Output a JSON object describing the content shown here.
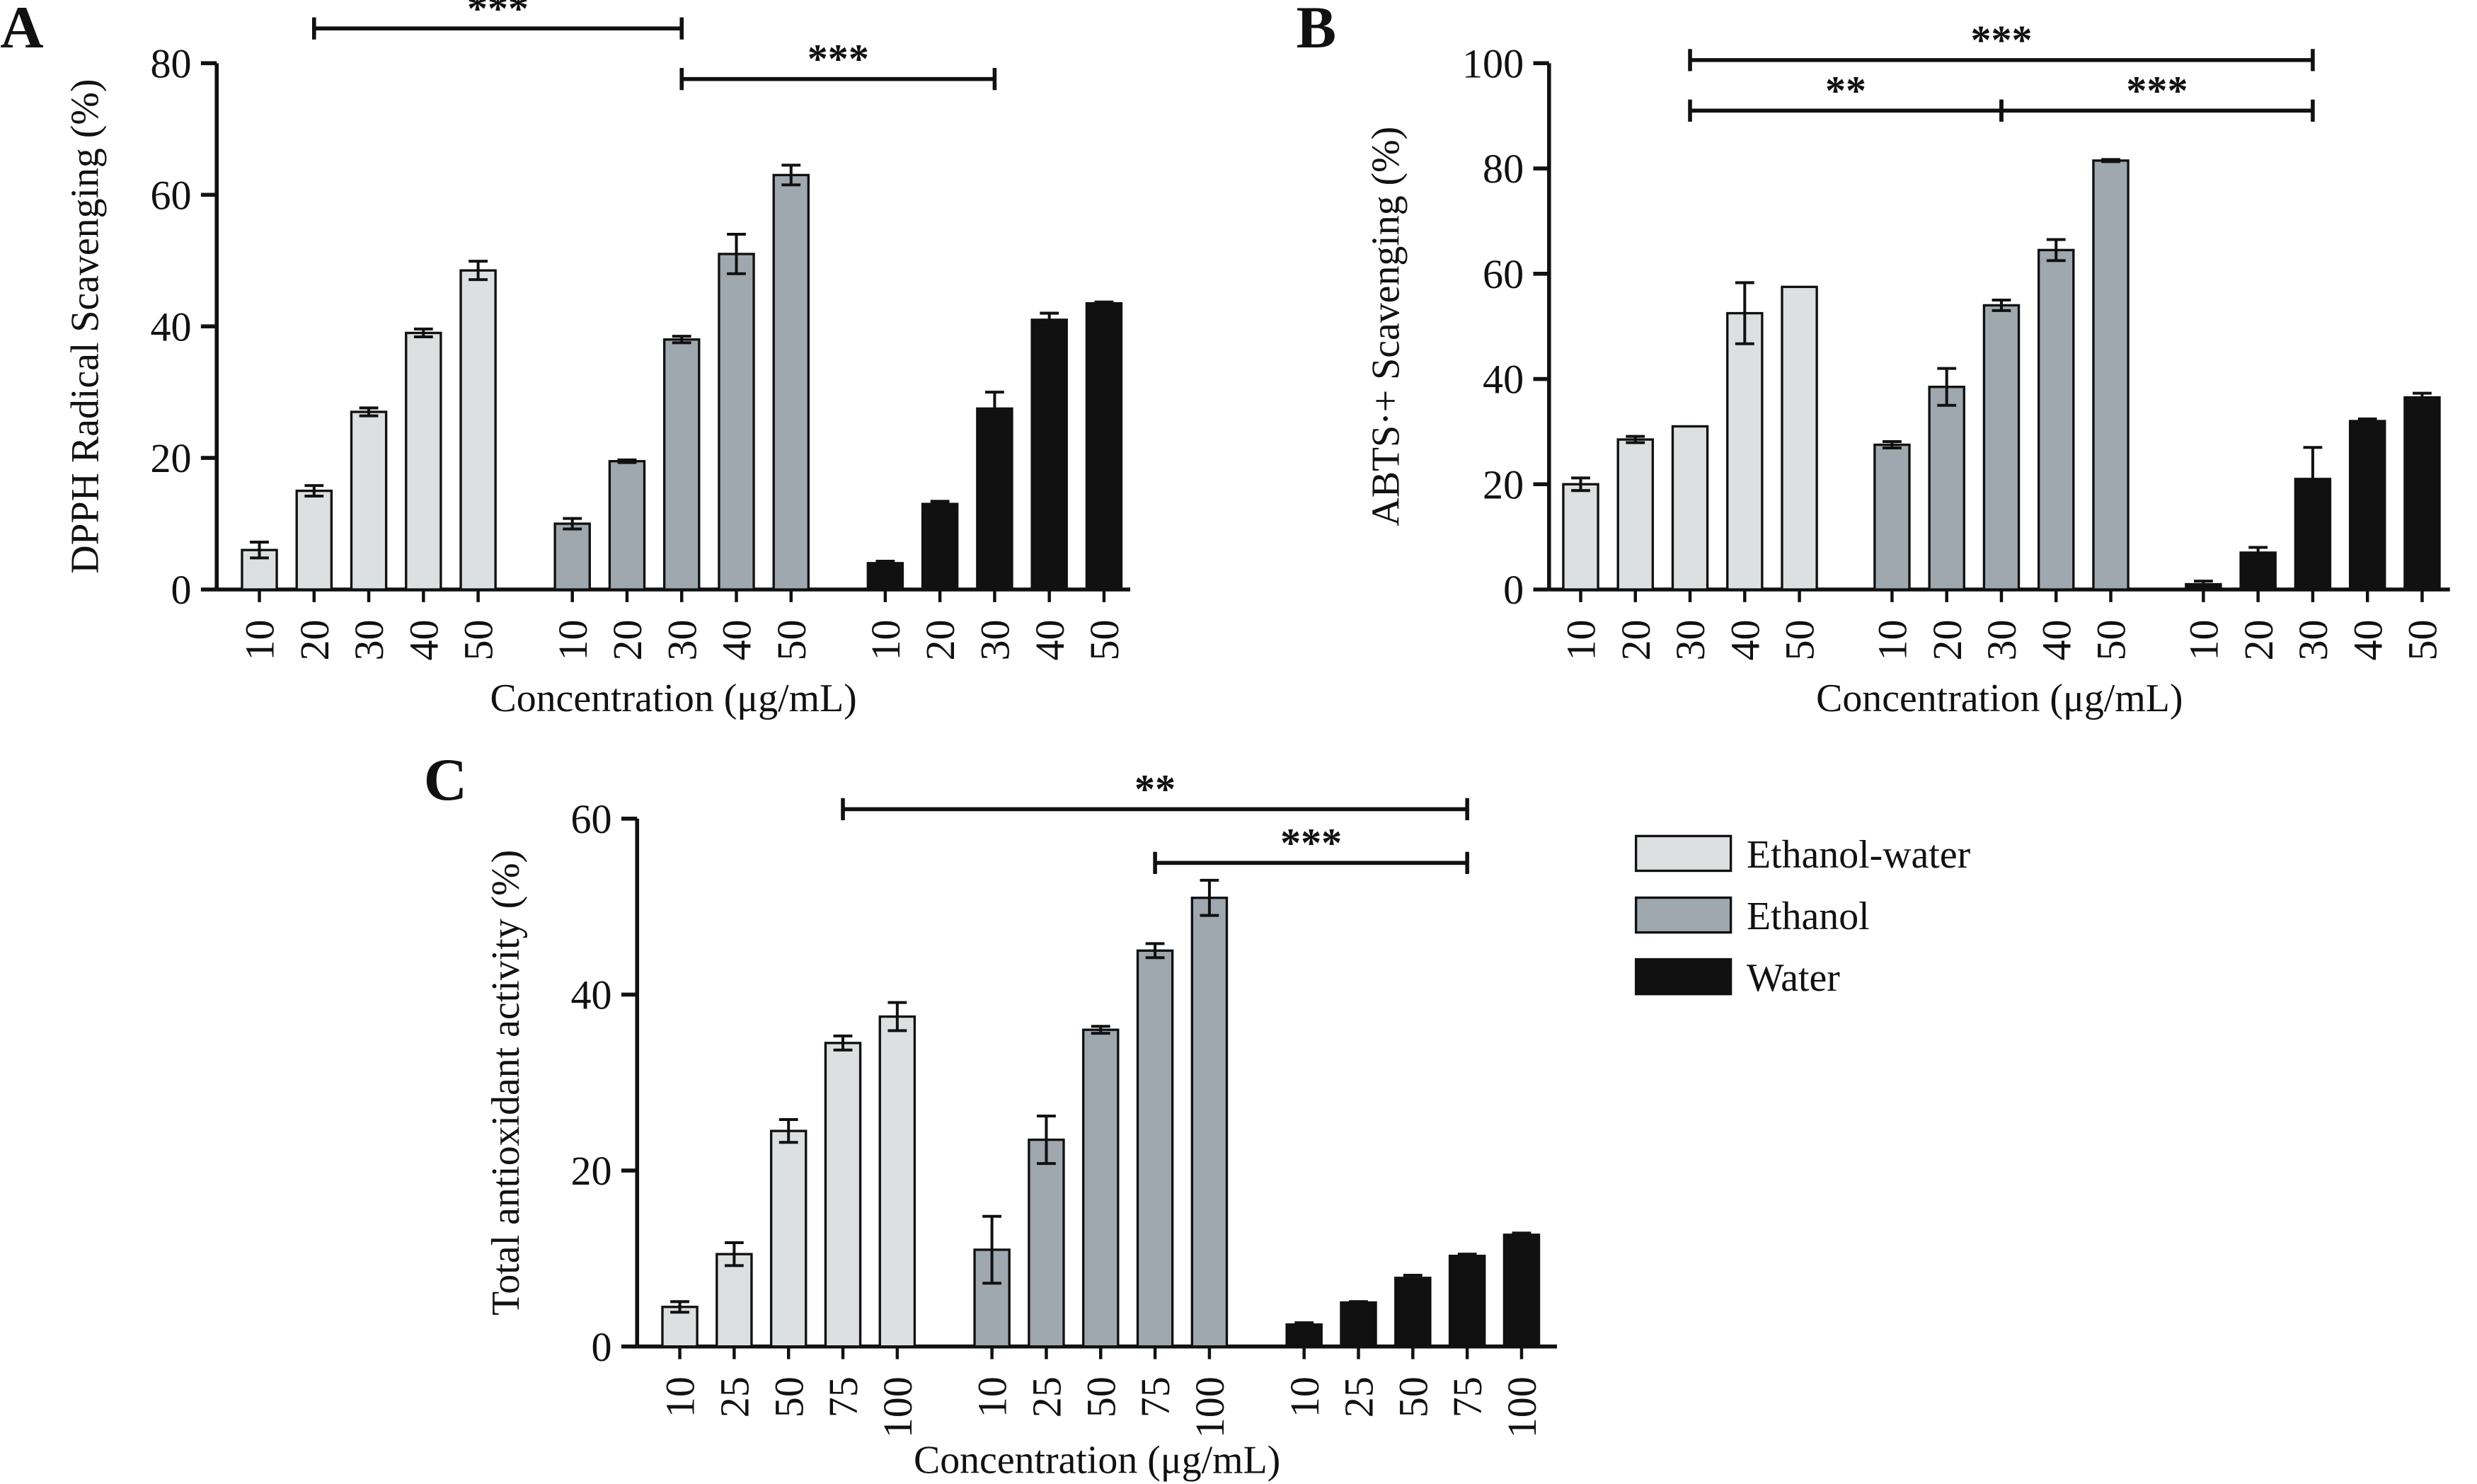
{
  "legend": [
    {
      "label": "Ethanol-water",
      "color": "#dde0e0"
    },
    {
      "label": "Ethanol",
      "color": "#9ea8ae"
    },
    {
      "label": "Water",
      "color": "#111111"
    }
  ],
  "chart_data": [
    {
      "type": "bar",
      "panel": "A",
      "ylabel": "DPPH Radical Scavenging (%)",
      "xlabel": "Concentration (μg/mL)",
      "ylim": [
        0,
        80
      ],
      "yticks": [
        0,
        20,
        40,
        60,
        80
      ],
      "categories": [
        "10",
        "20",
        "30",
        "40",
        "50"
      ],
      "series": [
        {
          "name": "Ethanol-water",
          "values": [
            6,
            15,
            27,
            39,
            48.5
          ],
          "errors": [
            1.2,
            0.8,
            0.6,
            0.6,
            1.4
          ]
        },
        {
          "name": "Ethanol",
          "values": [
            10,
            19.5,
            38,
            51,
            63
          ],
          "errors": [
            0.8,
            0.2,
            0.5,
            3,
            1.5
          ]
        },
        {
          "name": "Water",
          "values": [
            4,
            13,
            27.5,
            41,
            43.5
          ],
          "errors": [
            0.3,
            0.4,
            2.5,
            1,
            0.2
          ]
        }
      ],
      "significance": [
        {
          "label": "***",
          "from": [
            0,
            1
          ],
          "to": [
            1,
            2
          ],
          "level": 0
        },
        {
          "label": "***",
          "from": [
            1,
            2
          ],
          "to": [
            2,
            2
          ],
          "level": 1
        }
      ]
    },
    {
      "type": "bar",
      "panel": "B",
      "ylabel": "ABTS·+ Scavenging (%)",
      "xlabel": "Concentration (μg/mL)",
      "ylim": [
        0,
        100
      ],
      "yticks": [
        0,
        20,
        40,
        60,
        80,
        100
      ],
      "categories": [
        "10",
        "20",
        "30",
        "40",
        "50"
      ],
      "series": [
        {
          "name": "Ethanol-water",
          "values": [
            20,
            28.5,
            31,
            52.5,
            57.5
          ],
          "errors": [
            1.2,
            0.6,
            0,
            5.8,
            0
          ]
        },
        {
          "name": "Ethanol",
          "values": [
            27.5,
            38.5,
            54,
            64.5,
            81.5
          ],
          "errors": [
            0.6,
            3.5,
            1,
            2,
            0.2
          ]
        },
        {
          "name": "Water",
          "values": [
            1,
            7,
            21,
            32,
            36.5
          ],
          "errors": [
            0.6,
            1,
            6,
            0.4,
            0.8
          ]
        }
      ],
      "significance": [
        {
          "label": "***",
          "from": [
            0,
            2
          ],
          "to": [
            2,
            2
          ],
          "level": 0
        },
        {
          "label": "**",
          "from": [
            0,
            2
          ],
          "to": [
            1,
            2
          ],
          "level": 1
        },
        {
          "label": "***",
          "from": [
            1,
            2
          ],
          "to": [
            2,
            2
          ],
          "level": 1
        }
      ]
    },
    {
      "type": "bar",
      "panel": "C",
      "ylabel": "Total antioxidant activity (%)",
      "xlabel": "Concentration (μg/mL)",
      "ylim": [
        0,
        60
      ],
      "yticks": [
        0,
        20,
        40,
        60
      ],
      "categories": [
        "10",
        "25",
        "50",
        "75",
        "100"
      ],
      "series": [
        {
          "name": "Ethanol-water",
          "values": [
            4.5,
            10.5,
            24.5,
            34.5,
            37.5
          ],
          "errors": [
            0.6,
            1.3,
            1.3,
            0.8,
            1.6
          ]
        },
        {
          "name": "Ethanol",
          "values": [
            11,
            23.5,
            36,
            45,
            51
          ],
          "errors": [
            3.8,
            2.7,
            0.4,
            0.8,
            2
          ]
        },
        {
          "name": "Water",
          "values": [
            2.5,
            5,
            7.8,
            10.3,
            12.7
          ],
          "errors": [
            0.2,
            0.1,
            0.3,
            0.2,
            0.2
          ]
        }
      ],
      "significance": [
        {
          "label": "**",
          "from": [
            0,
            3
          ],
          "to": [
            2,
            3
          ],
          "level": 0
        },
        {
          "label": "***",
          "from": [
            1,
            3
          ],
          "to": [
            2,
            3
          ],
          "level": 1
        }
      ]
    }
  ]
}
